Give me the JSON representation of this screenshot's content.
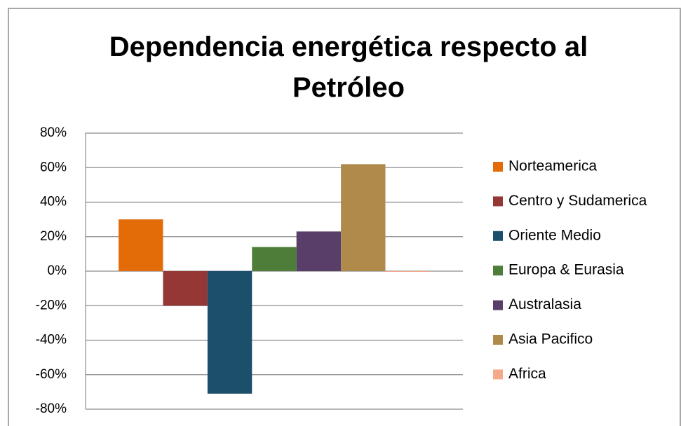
{
  "chart_data": {
    "type": "bar",
    "title": "Dependencia energética respecto al Petróleo",
    "categories": [
      null
    ],
    "series": [
      {
        "name": "Norteamerica",
        "color": "#e36c09",
        "values": [
          30
        ]
      },
      {
        "name": "Centro y Sudamerica",
        "color": "#953735",
        "values": [
          -20
        ]
      },
      {
        "name": "Oriente Medio",
        "color": "#1b4f6c",
        "values": [
          -71
        ]
      },
      {
        "name": "Europa & Eurasia",
        "color": "#4e7d3a",
        "values": [
          14
        ]
      },
      {
        "name": "Australasia",
        "color": "#5a3e6a",
        "values": [
          23
        ]
      },
      {
        "name": "Asia Pacifico",
        "color": "#b08a4b",
        "values": [
          62
        ]
      },
      {
        "name": "Africa",
        "color": "#f4a98a",
        "values": [
          0
        ]
      }
    ],
    "ylim": [
      -80,
      80
    ],
    "yticks": [
      {
        "value": 80,
        "label": "80%"
      },
      {
        "value": 60,
        "label": "60%"
      },
      {
        "value": 40,
        "label": "40%"
      },
      {
        "value": 20,
        "label": "20%"
      },
      {
        "value": 0,
        "label": "0%"
      },
      {
        "value": -20,
        "label": "-20%"
      },
      {
        "value": -40,
        "label": "-40%"
      },
      {
        "value": -60,
        "label": "-60%"
      },
      {
        "value": -80,
        "label": "-80%"
      }
    ],
    "grid": true,
    "legend": "right"
  }
}
